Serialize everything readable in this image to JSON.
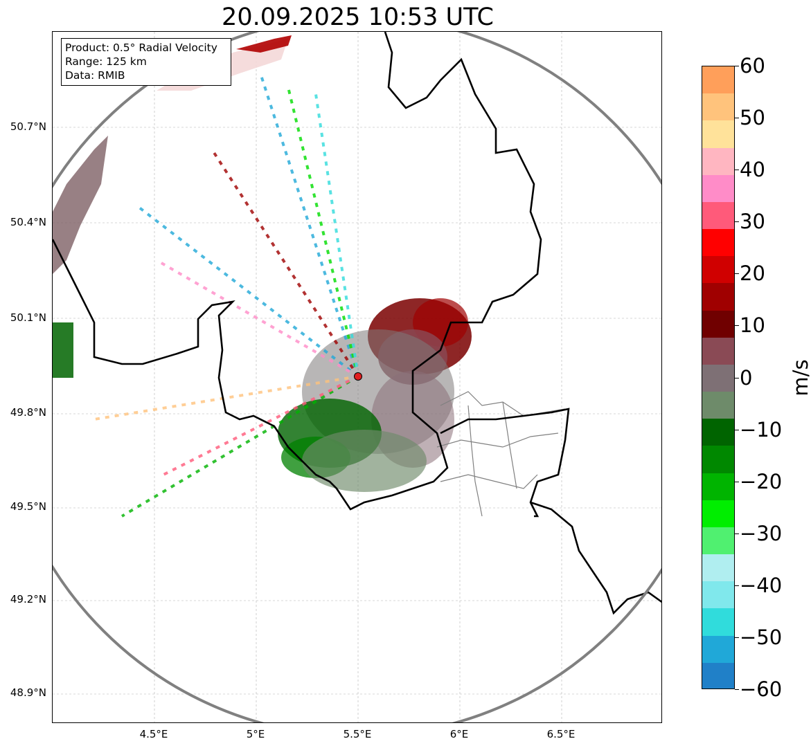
{
  "title": "20.09.2025 10:53 UTC",
  "info_box": {
    "line1": "Product: 0.5° Radial Velocity",
    "line2": "Range: 125 km",
    "line3": "Data: RMIB"
  },
  "map": {
    "lat_labels": [
      "50.7°N",
      "50.4°N",
      "50.1°N",
      "49.8°N",
      "49.5°N",
      "49.2°N",
      "48.9°N"
    ],
    "lon_labels": [
      "4.5°E",
      "5°E",
      "5.5°E",
      "6°E",
      "6.5°E"
    ],
    "radar_site_marker": "radar-site-dot",
    "range_ring_color": "#808080",
    "border_color": "#000000"
  },
  "colorbar": {
    "unit": "m/s",
    "tick_labels": [
      "60",
      "50",
      "40",
      "30",
      "20",
      "10",
      "0",
      "−10",
      "−20",
      "−30",
      "−40",
      "−50",
      "−60"
    ],
    "range": [
      -60,
      60
    ],
    "colors_top_to_bottom": [
      "#ff9f5a",
      "#ffc37c",
      "#ffe29a",
      "#ffb6c1",
      "#ff8cc8",
      "#ff5a7a",
      "#ff0000",
      "#d00000",
      "#a00000",
      "#700000",
      "#8a4a55",
      "#7e7075",
      "#6e8b6a",
      "#006400",
      "#008800",
      "#00b400",
      "#00ee00",
      "#50f070",
      "#b0eef0",
      "#80e8ec",
      "#30dcdc",
      "#20a8d8",
      "#2080c8"
    ]
  }
}
